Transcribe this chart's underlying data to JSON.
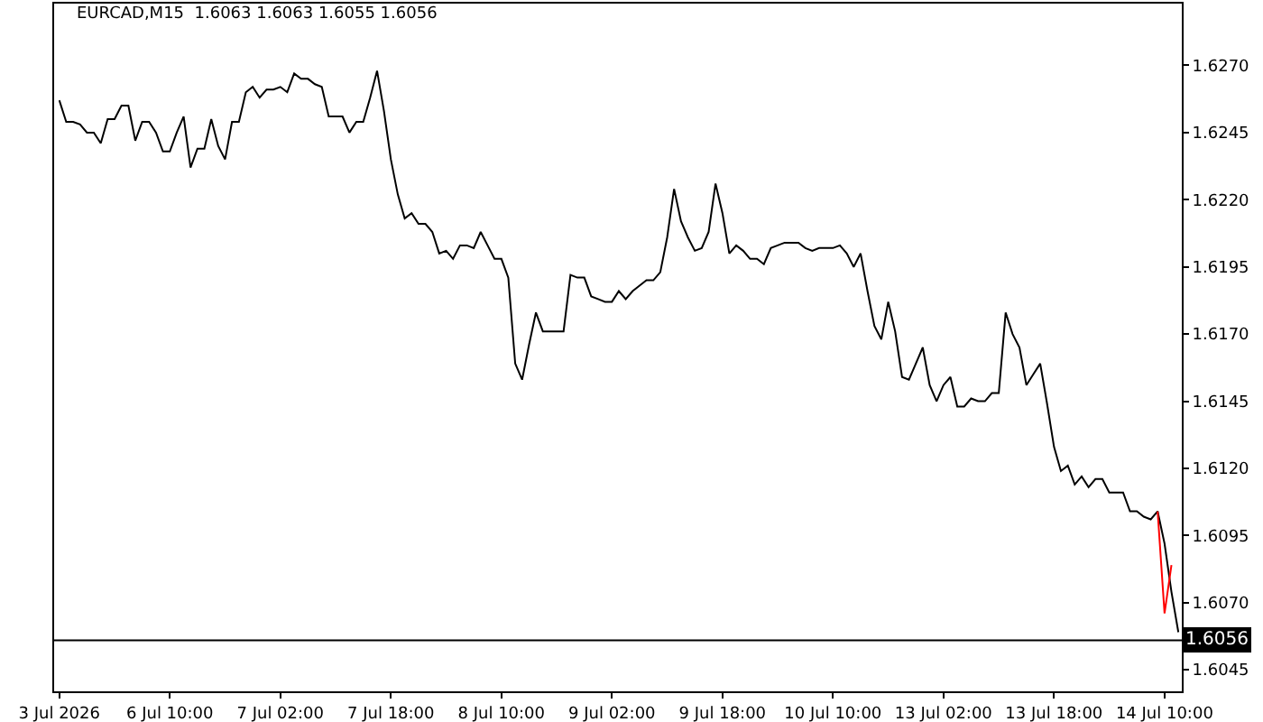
{
  "chart_data": {
    "type": "line",
    "title": "EURCAD,M15  1.6063 1.6063 1.6055 1.6056",
    "categories": [
      "3 Jul 2026",
      null,
      null,
      null,
      null,
      null,
      null,
      null,
      null,
      null,
      null,
      null,
      null,
      null,
      null,
      null,
      "6 Jul 10:00",
      null,
      null,
      null,
      null,
      null,
      null,
      null,
      null,
      null,
      null,
      null,
      null,
      null,
      null,
      null,
      "7 Jul 02:00",
      null,
      null,
      null,
      null,
      null,
      null,
      null,
      null,
      null,
      null,
      null,
      null,
      null,
      null,
      null,
      "7 Jul 18:00",
      null,
      null,
      null,
      null,
      null,
      null,
      null,
      null,
      null,
      null,
      null,
      null,
      null,
      null,
      null,
      "8 Jul 10:00",
      null,
      null,
      null,
      null,
      null,
      null,
      null,
      null,
      null,
      null,
      null,
      null,
      null,
      null,
      null,
      "9 Jul 02:00",
      null,
      null,
      null,
      null,
      null,
      null,
      null,
      null,
      null,
      null,
      null,
      null,
      null,
      null,
      null,
      "9 Jul 18:00",
      null,
      null,
      null,
      null,
      null,
      null,
      null,
      null,
      null,
      null,
      null,
      null,
      null,
      null,
      null,
      "10 Jul 10:00",
      null,
      null,
      null,
      null,
      null,
      null,
      null,
      null,
      null,
      null,
      null,
      null,
      null,
      null,
      null,
      "13 Jul 02:00",
      null,
      null,
      null,
      null,
      null,
      null,
      null,
      null,
      null,
      null,
      null,
      null,
      null,
      null,
      null,
      "13 Jul 18:00",
      null,
      null,
      null,
      null,
      null,
      null,
      null,
      null,
      null,
      null,
      null,
      null,
      null,
      null,
      null,
      "14 Jul 10:00",
      null,
      null
    ],
    "ylim": [
      1.6037,
      1.6293
    ],
    "yticks": [
      {
        "value": 1.6045,
        "label": "1.6045"
      },
      {
        "value": 1.607,
        "label": "1.6070"
      },
      {
        "value": 1.6095,
        "label": "1.6095"
      },
      {
        "value": 1.612,
        "label": "1.6120"
      },
      {
        "value": 1.6145,
        "label": "1.6145"
      },
      {
        "value": 1.617,
        "label": "1.6170"
      },
      {
        "value": 1.6195,
        "label": "1.6195"
      },
      {
        "value": 1.622,
        "label": "1.6220"
      },
      {
        "value": 1.6245,
        "label": "1.6245"
      },
      {
        "value": 1.627,
        "label": "1.6270"
      }
    ],
    "grid": false,
    "marker": "none",
    "line_style": "solid",
    "ref_lines": [
      {
        "axis": "y",
        "value": 1.6056,
        "label": "1.6056",
        "color": "#000000"
      }
    ],
    "series": [
      {
        "color": "#000000",
        "values": [
          1.6257,
          1.6249,
          1.6249,
          1.6248,
          1.6245,
          1.6245,
          1.6241,
          1.625,
          1.625,
          1.6255,
          1.6255,
          1.6242,
          1.6249,
          1.6249,
          1.6245,
          1.6238,
          1.6238,
          1.6245,
          1.6251,
          1.6232,
          1.6239,
          1.6239,
          1.625,
          1.624,
          1.6235,
          1.6249,
          1.6249,
          1.626,
          1.6262,
          1.6258,
          1.6261,
          1.6261,
          1.6262,
          1.626,
          1.6267,
          1.6265,
          1.6265,
          1.6263,
          1.6262,
          1.6251,
          1.6251,
          1.6251,
          1.6245,
          1.6249,
          1.6249,
          1.6258,
          1.6268,
          1.6253,
          1.6235,
          1.6222,
          1.6213,
          1.6215,
          1.6211,
          1.6211,
          1.6208,
          1.62,
          1.6201,
          1.6198,
          1.6203,
          1.6203,
          1.6202,
          1.6208,
          1.6203,
          1.6198,
          1.6198,
          1.6191,
          1.6159,
          1.6153,
          1.6166,
          1.6178,
          1.6171,
          1.6171,
          1.6171,
          1.6171,
          1.6192,
          1.6191,
          1.6191,
          1.6184,
          1.6183,
          1.6182,
          1.6182,
          1.6186,
          1.6183,
          1.6186,
          1.6188,
          1.619,
          1.619,
          1.6193,
          1.6206,
          1.6224,
          1.6212,
          1.6206,
          1.6201,
          1.6202,
          1.6208,
          1.6226,
          1.6215,
          1.62,
          1.6203,
          1.6201,
          1.6198,
          1.6198,
          1.6196,
          1.6202,
          1.6203,
          1.6204,
          1.6204,
          1.6204,
          1.6202,
          1.6201,
          1.6202,
          1.6202,
          1.6202,
          1.6203,
          1.62,
          1.6195,
          1.62,
          1.6186,
          1.6173,
          1.6168,
          1.6182,
          1.6171,
          1.6154,
          1.6153,
          1.6159,
          1.6165,
          1.6151,
          1.6145,
          1.6151,
          1.6154,
          1.6143,
          1.6143,
          1.6146,
          1.6145,
          1.6145,
          1.6148,
          1.6148,
          1.6178,
          1.617,
          1.6165,
          1.6151,
          1.6155,
          1.6159,
          1.6144,
          1.6128,
          1.6119,
          1.6121,
          1.6114,
          1.6117,
          1.6113,
          1.6116,
          1.6116,
          1.6111,
          1.6111,
          1.6111,
          1.6104,
          1.6104,
          1.6102,
          1.6101,
          1.6104,
          1.6092,
          1.6074,
          1.6059
        ]
      },
      {
        "color": "#ff0000",
        "values": [
          null,
          null,
          null,
          null,
          null,
          null,
          null,
          null,
          null,
          null,
          null,
          null,
          null,
          null,
          null,
          null,
          null,
          null,
          null,
          null,
          null,
          null,
          null,
          null,
          null,
          null,
          null,
          null,
          null,
          null,
          null,
          null,
          null,
          null,
          null,
          null,
          null,
          null,
          null,
          null,
          null,
          null,
          null,
          null,
          null,
          null,
          null,
          null,
          null,
          null,
          null,
          null,
          null,
          null,
          null,
          null,
          null,
          null,
          null,
          null,
          null,
          null,
          null,
          null,
          null,
          null,
          null,
          null,
          null,
          null,
          null,
          null,
          null,
          null,
          null,
          null,
          null,
          null,
          null,
          null,
          null,
          null,
          null,
          null,
          null,
          null,
          null,
          null,
          null,
          null,
          null,
          null,
          null,
          null,
          null,
          null,
          null,
          null,
          null,
          null,
          null,
          null,
          null,
          null,
          null,
          null,
          null,
          null,
          null,
          null,
          null,
          null,
          null,
          null,
          null,
          null,
          null,
          null,
          null,
          null,
          null,
          null,
          null,
          null,
          null,
          null,
          null,
          null,
          null,
          null,
          null,
          null,
          null,
          null,
          null,
          null,
          null,
          null,
          null,
          null,
          null,
          null,
          null,
          null,
          null,
          null,
          null,
          null,
          null,
          null,
          null,
          null,
          null,
          null,
          null,
          null,
          null,
          null,
          null,
          1.6104,
          1.6066,
          1.6084,
          null
        ]
      }
    ]
  }
}
